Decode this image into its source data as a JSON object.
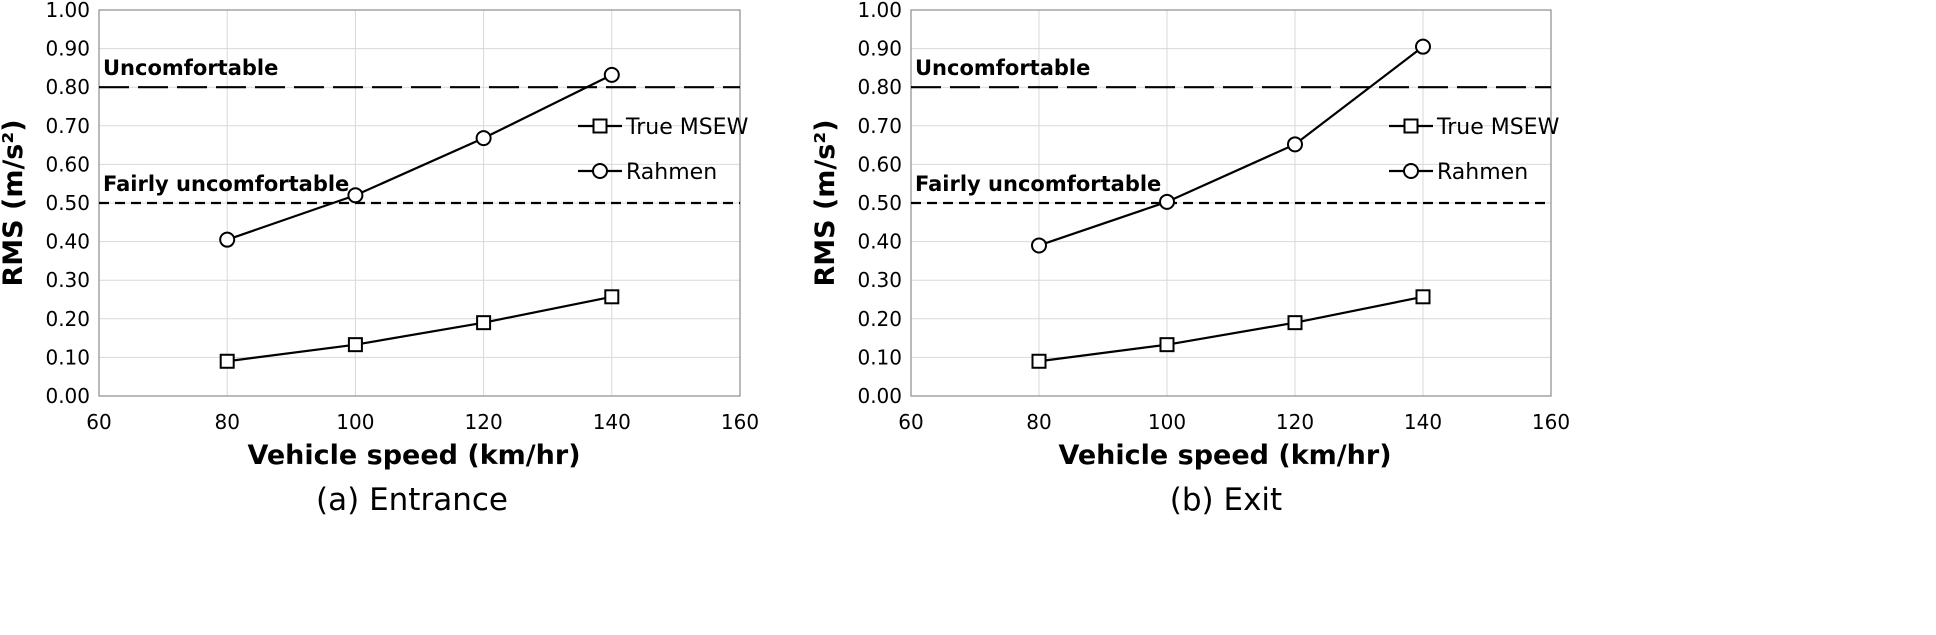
{
  "chart_data": [
    {
      "type": "line",
      "caption": "(a) Entrance",
      "xlabel": "Vehicle speed (km/hr)",
      "ylabel": "RMS (m/s²)",
      "xlim": [
        60,
        160
      ],
      "ylim": [
        0,
        1.0
      ],
      "x_ticks": [
        "60",
        "80",
        "100",
        "120",
        "140",
        "160"
      ],
      "y_ticks": [
        "0.00",
        "0.10",
        "0.20",
        "0.30",
        "0.40",
        "0.50",
        "0.60",
        "0.70",
        "0.80",
        "0.90",
        "1.00"
      ],
      "grid": true,
      "legend_position": "right",
      "series": [
        {
          "name": "True MSEW",
          "marker": "square",
          "x": [
            80,
            100,
            120,
            140
          ],
          "y": [
            0.09,
            0.133,
            0.19,
            0.257
          ]
        },
        {
          "name": "Rahmen",
          "marker": "circle",
          "x": [
            80,
            100,
            120,
            140
          ],
          "y": [
            0.405,
            0.52,
            0.668,
            0.832
          ]
        }
      ],
      "reference_lines": [
        {
          "label": "Uncomfortable",
          "y": 0.8,
          "style": "long-dash"
        },
        {
          "label": "Fairly uncomfortable",
          "y": 0.5,
          "style": "short-dash"
        }
      ]
    },
    {
      "type": "line",
      "caption": "(b) Exit",
      "xlabel": "Vehicle speed (km/hr)",
      "ylabel": "RMS (m/s²)",
      "xlim": [
        60,
        160
      ],
      "ylim": [
        0,
        1.0
      ],
      "x_ticks": [
        "60",
        "80",
        "100",
        "120",
        "140",
        "160"
      ],
      "y_ticks": [
        "0.00",
        "0.10",
        "0.20",
        "0.30",
        "0.40",
        "0.50",
        "0.60",
        "0.70",
        "0.80",
        "0.90",
        "1.00"
      ],
      "grid": true,
      "legend_position": "right",
      "series": [
        {
          "name": "True MSEW",
          "marker": "square",
          "x": [
            80,
            100,
            120,
            140
          ],
          "y": [
            0.09,
            0.133,
            0.19,
            0.257
          ]
        },
        {
          "name": "Rahmen",
          "marker": "circle",
          "x": [
            80,
            100,
            120,
            140
          ],
          "y": [
            0.39,
            0.503,
            0.652,
            0.905
          ]
        }
      ],
      "reference_lines": [
        {
          "label": "Uncomfortable",
          "y": 0.8,
          "style": "long-dash"
        },
        {
          "label": "Fairly uncomfortable",
          "y": 0.5,
          "style": "short-dash"
        }
      ]
    }
  ]
}
